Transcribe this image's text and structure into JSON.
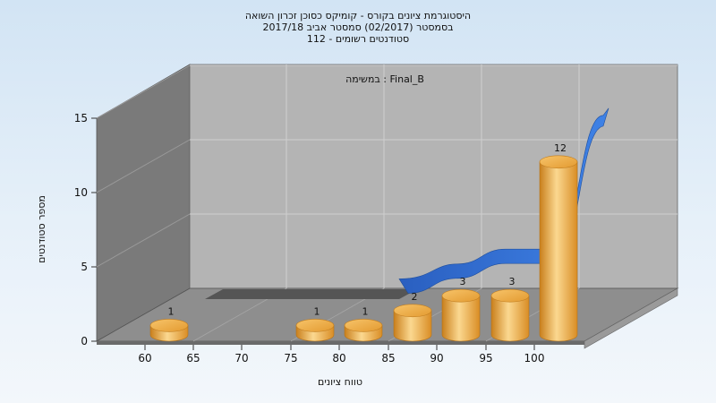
{
  "chart_data": {
    "type": "bar",
    "title_lines": [
      "היסטוגרמת ציונים בקורס - קומיקס כסוכן זכרון השואה",
      "בסמסטר  (02/2017)  סמסטר אביב 2017/18",
      "סטודנטים רשומים - 112"
    ],
    "subtitle": "במשימה : Final_B",
    "xlabel": "טווח ציונים",
    "ylabel": "מספר סטודנטים",
    "categories": [
      "60",
      "65",
      "70",
      "75",
      "80",
      "85",
      "90",
      "95",
      "100"
    ],
    "y_ticks": [
      "0",
      "5",
      "10",
      "15"
    ],
    "ylim": [
      0,
      15
    ],
    "values": [
      1,
      0,
      0,
      1,
      1,
      2,
      3,
      3,
      12
    ],
    "bar_labels": [
      "1",
      "",
      "",
      "1",
      "1",
      "2",
      "3",
      "3",
      "12"
    ],
    "trend_line": true,
    "grid": true,
    "colors": {
      "bar": "#e8a13a",
      "bar_light": "#fbd890",
      "trend": "#2f6fd4",
      "wall_back": "#b4b4b4",
      "wall_side": "#7a7a7a",
      "floor": "#909090"
    }
  }
}
